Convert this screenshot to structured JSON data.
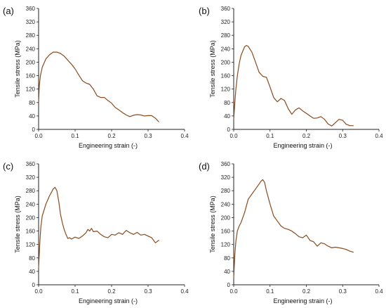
{
  "chart_data": [
    {
      "type": "line",
      "panel_label": "(a)",
      "xlabel": "Engineering strain (-)",
      "ylabel": "Tensile stress (MPa)",
      "xlim": [
        0.0,
        0.4
      ],
      "ylim": [
        0,
        360
      ],
      "xticks": [
        "0.0",
        "0.1",
        "0.2",
        "0.3",
        "0.4"
      ],
      "yticks": [
        "0",
        "40",
        "80",
        "120",
        "160",
        "200",
        "240",
        "280",
        "320",
        "360"
      ],
      "grid": false,
      "color": "#8B4A1E",
      "series": [
        {
          "x": [
            0.0,
            0.002,
            0.005,
            0.01,
            0.02,
            0.03,
            0.04,
            0.05,
            0.06,
            0.07,
            0.08,
            0.09,
            0.1,
            0.11,
            0.12,
            0.13,
            0.14,
            0.15,
            0.16,
            0.17,
            0.18,
            0.19,
            0.2,
            0.21,
            0.22,
            0.23,
            0.24,
            0.25,
            0.26,
            0.27,
            0.28,
            0.29,
            0.3,
            0.31,
            0.32,
            0.33
          ],
          "y": [
            80,
            130,
            160,
            185,
            210,
            222,
            230,
            230,
            226,
            218,
            206,
            194,
            180,
            162,
            145,
            138,
            134,
            120,
            100,
            95,
            95,
            86,
            78,
            65,
            58,
            50,
            43,
            38,
            42,
            44,
            43,
            40,
            41,
            41,
            33,
            22
          ]
        }
      ]
    },
    {
      "type": "line",
      "panel_label": "(b)",
      "xlabel": "Engineering strain (-)",
      "ylabel": "Tensile stress (MPa)",
      "xlim": [
        0.0,
        0.4
      ],
      "ylim": [
        0,
        360
      ],
      "xticks": [
        "0.0",
        "0.1",
        "0.2",
        "0.3",
        "0.4"
      ],
      "yticks": [
        "0",
        "40",
        "80",
        "120",
        "160",
        "200",
        "240",
        "280",
        "320",
        "360"
      ],
      "grid": false,
      "color": "#8B4A1E",
      "series": [
        {
          "x": [
            0.0,
            0.003,
            0.006,
            0.01,
            0.015,
            0.02,
            0.03,
            0.035,
            0.04,
            0.05,
            0.06,
            0.07,
            0.08,
            0.09,
            0.1,
            0.11,
            0.12,
            0.13,
            0.14,
            0.15,
            0.16,
            0.17,
            0.18,
            0.19,
            0.2,
            0.21,
            0.22,
            0.23,
            0.24,
            0.25,
            0.26,
            0.27,
            0.28,
            0.29,
            0.3,
            0.31,
            0.32,
            0.33
          ],
          "y": [
            30,
            80,
            120,
            160,
            195,
            220,
            246,
            250,
            247,
            230,
            200,
            170,
            158,
            155,
            126,
            95,
            82,
            92,
            86,
            62,
            45,
            58,
            64,
            55,
            48,
            40,
            33,
            34,
            38,
            30,
            16,
            10,
            20,
            30,
            27,
            15,
            11,
            11
          ]
        }
      ]
    },
    {
      "type": "line",
      "panel_label": "(c)",
      "xlabel": "Engineering strain (-)",
      "ylabel": "Tensile stress (MPa)",
      "xlim": [
        0.0,
        0.4
      ],
      "ylim": [
        0,
        360
      ],
      "xticks": [
        "0.0",
        "0.1",
        "0.2",
        "0.3",
        "0.4"
      ],
      "yticks": [
        "0",
        "40",
        "80",
        "120",
        "160",
        "200",
        "240",
        "280",
        "320",
        "360"
      ],
      "grid": false,
      "color": "#8B4A1E",
      "series": [
        {
          "x": [
            0.0,
            0.003,
            0.006,
            0.01,
            0.02,
            0.03,
            0.04,
            0.045,
            0.05,
            0.055,
            0.06,
            0.065,
            0.07,
            0.075,
            0.08,
            0.085,
            0.09,
            0.1,
            0.11,
            0.12,
            0.13,
            0.135,
            0.14,
            0.145,
            0.15,
            0.16,
            0.17,
            0.18,
            0.19,
            0.2,
            0.21,
            0.22,
            0.23,
            0.24,
            0.25,
            0.26,
            0.27,
            0.28,
            0.29,
            0.3,
            0.31,
            0.32,
            0.33
          ],
          "y": [
            50,
            120,
            170,
            205,
            240,
            265,
            285,
            290,
            280,
            250,
            210,
            185,
            165,
            150,
            138,
            140,
            136,
            142,
            138,
            145,
            155,
            165,
            160,
            168,
            158,
            160,
            150,
            143,
            140,
            150,
            148,
            155,
            150,
            162,
            155,
            150,
            156,
            148,
            150,
            145,
            140,
            125,
            133
          ]
        }
      ]
    },
    {
      "type": "line",
      "panel_label": "(d)",
      "xlabel": "Engineering strain (-)",
      "ylabel": "Tensile stress (MPa)",
      "xlim": [
        0.0,
        0.4
      ],
      "ylim": [
        0,
        360
      ],
      "xticks": [
        "0.0",
        "0.1",
        "0.2",
        "0.3",
        "0.4"
      ],
      "yticks": [
        "0",
        "40",
        "80",
        "120",
        "160",
        "200",
        "240",
        "280",
        "320",
        "360"
      ],
      "grid": false,
      "color": "#8B4A1E",
      "series": [
        {
          "x": [
            0.0,
            0.003,
            0.006,
            0.01,
            0.015,
            0.02,
            0.03,
            0.04,
            0.05,
            0.06,
            0.07,
            0.075,
            0.08,
            0.085,
            0.09,
            0.1,
            0.11,
            0.12,
            0.13,
            0.14,
            0.15,
            0.16,
            0.17,
            0.18,
            0.19,
            0.2,
            0.21,
            0.22,
            0.23,
            0.24,
            0.25,
            0.26,
            0.27,
            0.28,
            0.29,
            0.3,
            0.31,
            0.32,
            0.33
          ],
          "y": [
            20,
            90,
            130,
            160,
            175,
            185,
            215,
            255,
            270,
            285,
            300,
            308,
            313,
            305,
            280,
            240,
            205,
            190,
            175,
            168,
            165,
            160,
            152,
            143,
            140,
            148,
            132,
            128,
            115,
            125,
            122,
            115,
            110,
            112,
            110,
            108,
            105,
            100,
            97
          ]
        }
      ]
    }
  ]
}
